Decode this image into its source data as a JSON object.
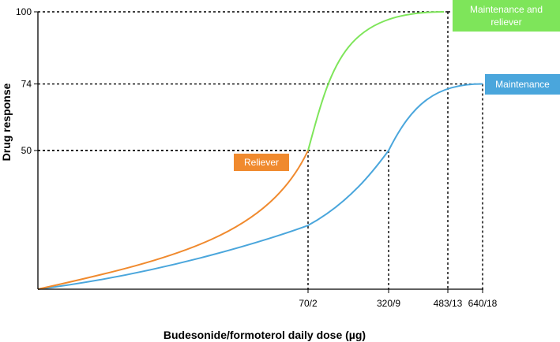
{
  "chart_data": {
    "type": "line",
    "xlabel": "Budesonide/formoterol daily dose (µg)",
    "ylabel": "Drug response",
    "x_ticks": [
      "70/2",
      "320/9",
      "483/13",
      "640/18"
    ],
    "y_ticks": [
      50,
      74,
      100
    ],
    "ylim": [
      0,
      100
    ],
    "grid": false,
    "series": [
      {
        "name": "Reliever",
        "color": "#f08a2e",
        "points": [
          [
            "0",
            0
          ],
          [
            "70/2",
            50
          ]
        ]
      },
      {
        "name": "Maintenance and reliever",
        "color": "#7ee55a",
        "points": [
          [
            "70/2",
            50
          ],
          [
            "483/13",
            100
          ]
        ]
      },
      {
        "name": "Maintenance",
        "color": "#4aa6dc",
        "points": [
          [
            "0",
            0
          ],
          [
            "70/2",
            23
          ],
          [
            "320/9",
            50
          ],
          [
            "640/18",
            74
          ]
        ]
      }
    ],
    "reference_points": [
      {
        "x": "70/2",
        "y": 50
      },
      {
        "x": "320/9",
        "y": 50
      },
      {
        "x": "483/13",
        "y": 100
      },
      {
        "x": "640/18",
        "y": 74
      }
    ]
  }
}
